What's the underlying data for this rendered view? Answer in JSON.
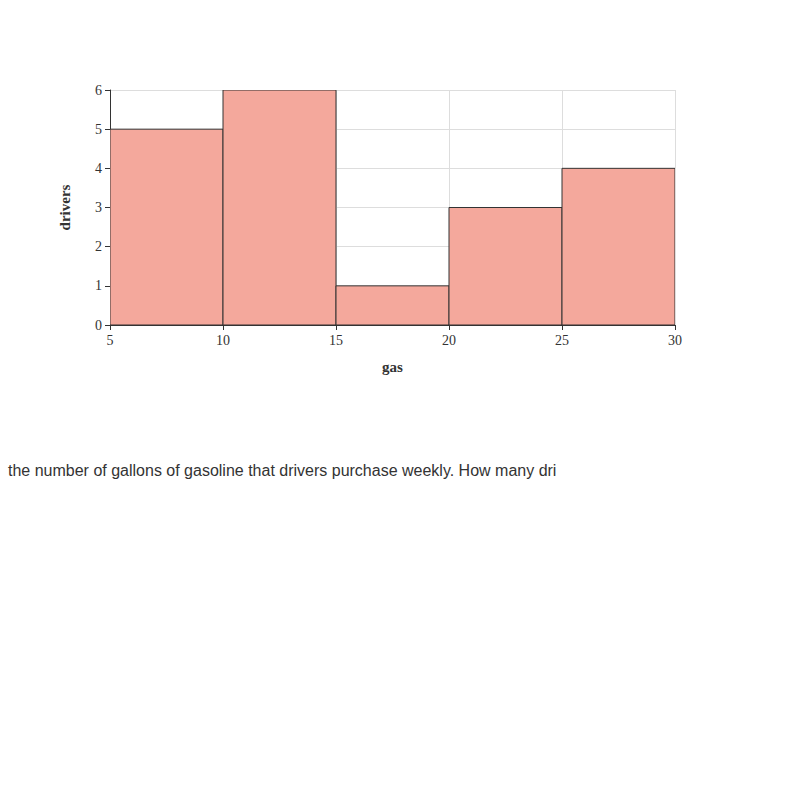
{
  "chart_data": {
    "type": "histogram",
    "bins": [
      5,
      10,
      15,
      20,
      25,
      30
    ],
    "values": [
      5,
      6,
      1,
      3,
      4
    ],
    "color": "#f4a89c",
    "xlabel": "gas",
    "ylabel": "drivers",
    "xlim": [
      5,
      30
    ],
    "xticks": [
      5,
      10,
      15,
      20,
      25,
      30
    ],
    "ylim": [
      0,
      6
    ],
    "yticks": [
      0,
      1,
      2,
      3,
      4,
      5,
      6
    ],
    "grid": true,
    "annotation": "the number of gallons of gasoline that drivers purchase weekly. How many dri"
  }
}
